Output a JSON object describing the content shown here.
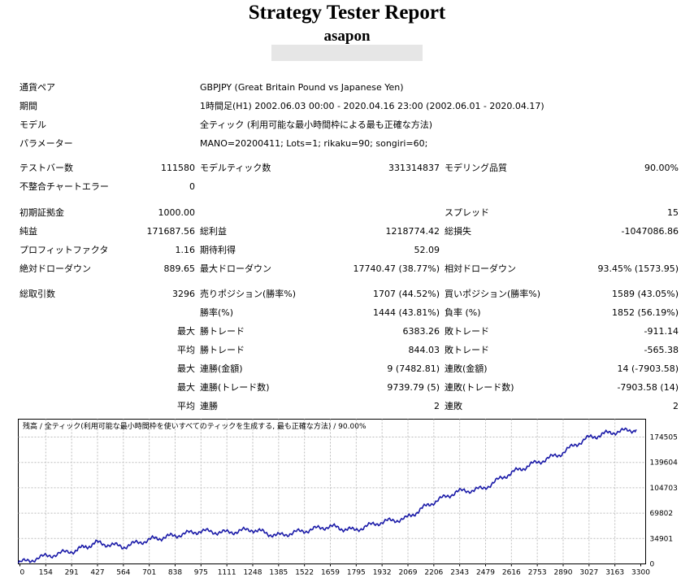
{
  "report": {
    "title": "Strategy Tester Report",
    "account": "asapon"
  },
  "info": {
    "symbol_label": "通貨ペア",
    "symbol_value": "GBPJPY (Great Britain Pound vs Japanese Yen)",
    "period_label": "期間",
    "period_value": "1時間足(H1) 2002.06.03 00:00 - 2020.04.16 23:00 (2002.06.01 - 2020.04.17)",
    "model_label": "モデル",
    "model_value": "全ティック (利用可能な最小時間枠による最も正確な方法)",
    "params_label": "パラメーター",
    "params_value": "MANO=20200411; Lots=1; rikaku=90; songiri=60;"
  },
  "stats": {
    "bars_label": "テストバー数",
    "bars_value": "111580",
    "ticks_label": "モデルティック数",
    "ticks_value": "331314837",
    "quality_label": "モデリング品質",
    "quality_value": "90.00%",
    "errors_label": "不整合チャートエラー",
    "errors_value": "0",
    "deposit_label": "初期証拠金",
    "deposit_value": "1000.00",
    "spread_label": "スプレッド",
    "spread_value": "15",
    "net_label": "純益",
    "net_value": "171687.56",
    "gross_profit_label": "総利益",
    "gross_profit_value": "1218774.42",
    "gross_loss_label": "総損失",
    "gross_loss_value": "-1047086.86",
    "pf_label": "プロフィットファクタ",
    "pf_value": "1.16",
    "expected_label": "期待利得",
    "expected_value": "52.09",
    "abs_dd_label": "絶対ドローダウン",
    "abs_dd_value": "889.65",
    "max_dd_label": "最大ドローダウン",
    "max_dd_value": "17740.47 (38.77%)",
    "rel_dd_label": "相対ドローダウン",
    "rel_dd_value": "93.45% (1573.95)",
    "trades_label": "総取引数",
    "trades_value": "3296",
    "short_label": "売りポジション(勝率%)",
    "short_value": "1707 (44.52%)",
    "long_label": "買いポジション(勝率%)",
    "long_value": "1589 (43.05%)",
    "win_label": "勝率(%)",
    "win_value": "1444 (43.81%)",
    "loss_label": "負率 (%)",
    "loss_value": "1852 (56.19%)",
    "max_word": "最大",
    "avg_word": "平均",
    "largest_win_label": "勝トレード",
    "largest_win_value": "6383.26",
    "largest_loss_label": "敗トレード",
    "largest_loss_value": "-911.14",
    "avg_win_label": "勝トレード",
    "avg_win_value": "844.03",
    "avg_loss_label": "敗トレード",
    "avg_loss_value": "-565.38",
    "cons_wins_label": "連勝(金額)",
    "cons_wins_value": "9 (7482.81)",
    "cons_losses_label": "連敗(金額)",
    "cons_losses_value": "14 (-7903.58)",
    "cons_profit_label": "連勝(トレード数)",
    "cons_profit_value": "9739.79 (5)",
    "cons_loss_label": "連敗(トレード数)",
    "cons_loss_value": "-7903.58 (14)",
    "avg_cons_wins_label": "連勝",
    "avg_cons_wins_value": "2",
    "avg_cons_losses_label": "連敗",
    "avg_cons_losses_value": "2"
  },
  "chart_data": {
    "type": "line",
    "legend": "残高 / 全ティック(利用可能な最小時間枠を使いすべてのティックを生成する, 最も正確な方法) / 90.00%",
    "line_color": "#1a1aa8",
    "x_ticks": [
      "0",
      "154",
      "291",
      "427",
      "564",
      "701",
      "838",
      "975",
      "1111",
      "1248",
      "1385",
      "1522",
      "1659",
      "1795",
      "1932",
      "2069",
      "2206",
      "2343",
      "2479",
      "2616",
      "2753",
      "2890",
      "3027",
      "3163",
      "3300"
    ],
    "y_ticks": [
      "174505",
      "139604",
      "104703",
      "69802",
      "34901",
      "0"
    ],
    "xlim": [
      0,
      3350
    ],
    "ylim": [
      0,
      185000
    ],
    "x": [
      0,
      150,
      300,
      420,
      560,
      700,
      830,
      970,
      1110,
      1250,
      1380,
      1520,
      1660,
      1790,
      1930,
      2070,
      2200,
      2340,
      2480,
      2620,
      2750,
      2890,
      3030,
      3160,
      3300
    ],
    "y": [
      1000,
      10000,
      17000,
      27000,
      22000,
      31000,
      36000,
      42000,
      40000,
      44000,
      36000,
      42000,
      48000,
      43000,
      53000,
      58000,
      77000,
      92000,
      96000,
      115000,
      128000,
      140000,
      160000,
      168000,
      171700
    ]
  }
}
